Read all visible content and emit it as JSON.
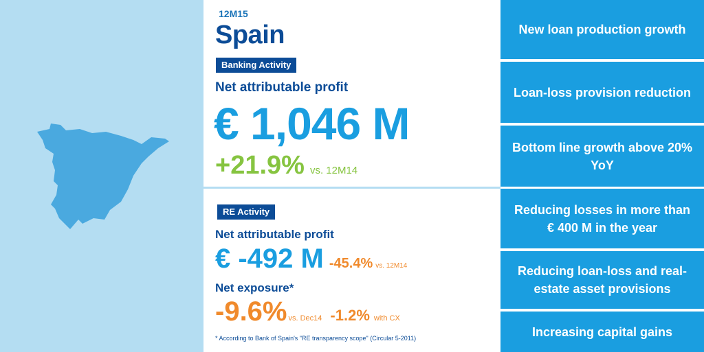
{
  "period": "12M15",
  "country": "Spain",
  "banking": {
    "tag": "Banking Activity",
    "label": "Net attributable profit",
    "value": "€ 1,046 M",
    "growth": "+21.9%",
    "growth_vs": "vs. 12M14"
  },
  "re": {
    "tag": "RE Activity",
    "label": "Net attributable profit",
    "value": "€ -492 M",
    "change": "-45.4%",
    "change_vs": "vs. 12M14",
    "exposure_label": "Net exposure*",
    "exposure_value": "-9.6%",
    "exposure_vs": "vs. Dec14",
    "cx_value": "-1.2%",
    "cx_label": "with CX"
  },
  "footnote": "* According to Bank of Spain's \"RE transparency scope\" (Circular 5-2011)",
  "highlights": [
    "New loan production growth",
    "Loan-loss provision reduction",
    "Bottom line growth above 20% YoY",
    "Reducing losses in more than € 400 M in the year",
    "Reducing loan-loss and real-estate asset provisions",
    "Increasing capital gains"
  ],
  "colors": {
    "navy": "#0c4c97",
    "blue": "#1a9ee0",
    "light_blue": "#b4ddf2",
    "green": "#86c440",
    "orange": "#f08a2c"
  }
}
